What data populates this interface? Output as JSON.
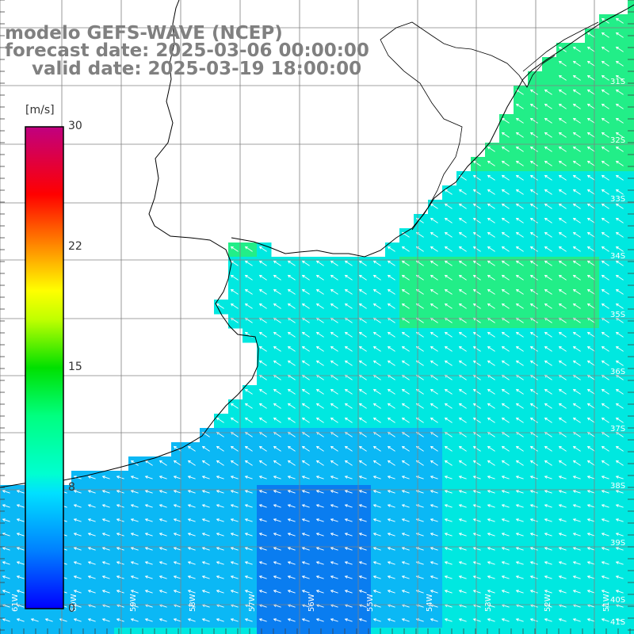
{
  "title": {
    "line1": "modelo GEFS-WAVE (NCEP)",
    "line2": "forecast date: 2025-03-06 00:00:00",
    "line3": "valid date: 2025-03-19 18:00:00"
  },
  "colorbar": {
    "units": "[m/s]",
    "ticks": [
      "30",
      "22",
      "15",
      "8",
      "0"
    ],
    "tick_values": [
      30,
      22,
      15,
      8,
      0
    ],
    "range": [
      0,
      30
    ],
    "colors": [
      "#0000ff",
      "#0080ff",
      "#00e0ff",
      "#00ffc0",
      "#00e000",
      "#ffff00",
      "#ff8000",
      "#ff0000",
      "#c00080"
    ]
  },
  "map": {
    "lat_labels": [
      "31S",
      "32S",
      "33S",
      "34S",
      "35S",
      "36S",
      "37S",
      "38S",
      "39S",
      "40S",
      "41S"
    ],
    "lon_labels": [
      "61W",
      "60W",
      "59W",
      "58W",
      "57W",
      "56W",
      "55W",
      "54W",
      "53W",
      "52W",
      "51W"
    ],
    "ocean_colors": {
      "strong": "#22ee88",
      "moderate": "#00e8e0",
      "light": "#0bb8f5",
      "weak": "#0a7df0"
    },
    "grid_color": "#808080",
    "land_color": "#ffffff",
    "coast_color": "#000000"
  }
}
